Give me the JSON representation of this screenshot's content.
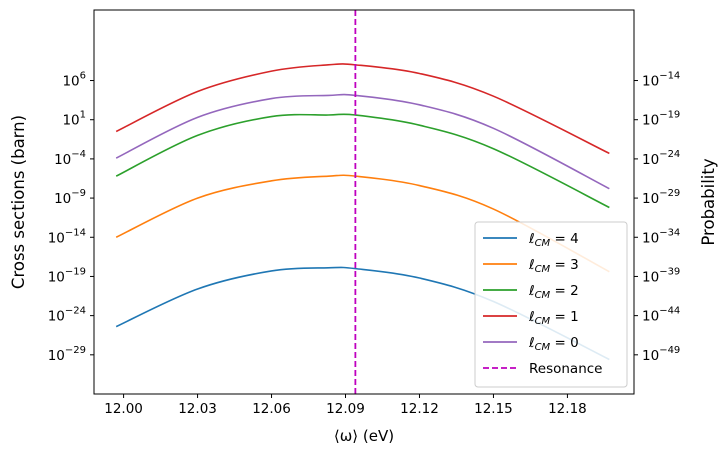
{
  "chart_data": {
    "type": "line",
    "title": "",
    "xlabel": "⟨ω⟩ (eV)",
    "ylabel_left": "Cross sections (barn)",
    "ylabel_right": "Probability",
    "xlim": [
      11.988,
      12.207
    ],
    "ylim_log10_left": [
      -34,
      15
    ],
    "ylim_log10_right": [
      -54,
      -5
    ],
    "x_ticks": [
      {
        "value": 12.0,
        "label": "12.00"
      },
      {
        "value": 12.03,
        "label": "12.03"
      },
      {
        "value": 12.06,
        "label": "12.06"
      },
      {
        "value": 12.09,
        "label": "12.09"
      },
      {
        "value": 12.12,
        "label": "12.12"
      },
      {
        "value": 12.15,
        "label": "12.15"
      },
      {
        "value": 12.18,
        "label": "12.18"
      }
    ],
    "left_ticks": [
      {
        "exp": 6,
        "base": "10",
        "sup": "6"
      },
      {
        "exp": 1,
        "base": "10",
        "sup": "1"
      },
      {
        "exp": -4,
        "base": "10",
        "sup": "−4"
      },
      {
        "exp": -9,
        "base": "10",
        "sup": "−9"
      },
      {
        "exp": -14,
        "base": "10",
        "sup": "−14"
      },
      {
        "exp": -19,
        "base": "10",
        "sup": "−19"
      },
      {
        "exp": -24,
        "base": "10",
        "sup": "−24"
      },
      {
        "exp": -29,
        "base": "10",
        "sup": "−29"
      }
    ],
    "right_ticks": [
      {
        "exp": -14,
        "base": "10",
        "sup": "−14"
      },
      {
        "exp": -19,
        "base": "10",
        "sup": "−19"
      },
      {
        "exp": -24,
        "base": "10",
        "sup": "−24"
      },
      {
        "exp": -29,
        "base": "10",
        "sup": "−29"
      },
      {
        "exp": -34,
        "base": "10",
        "sup": "−34"
      },
      {
        "exp": -39,
        "base": "10",
        "sup": "−39"
      },
      {
        "exp": -44,
        "base": "10",
        "sup": "−44"
      },
      {
        "exp": -49,
        "base": "10",
        "sup": "−49"
      }
    ],
    "resonance_x": 12.094,
    "series": [
      {
        "name": "ℓ_CM = 4",
        "legend_main": "ℓ",
        "legend_sub": "CM",
        "legend_rest": " = 4",
        "color": "#1f77b4",
        "x": [
          11.997,
          12.03,
          12.06,
          12.083,
          12.094,
          12.12,
          12.15,
          12.197
        ],
        "log10_y": [
          -25.4,
          -20.6,
          -18.3,
          -17.9,
          -18.0,
          -19.2,
          -22.2,
          -29.6
        ]
      },
      {
        "name": "ℓ_CM = 3",
        "legend_main": "ℓ",
        "legend_sub": "CM",
        "legend_rest": " = 3",
        "color": "#ff7f0e",
        "x": [
          11.997,
          12.03,
          12.06,
          12.083,
          12.094,
          12.12,
          12.15,
          12.197
        ],
        "log10_y": [
          -14.0,
          -9.0,
          -6.8,
          -6.2,
          -6.2,
          -7.4,
          -10.4,
          -18.4
        ]
      },
      {
        "name": "ℓ_CM = 2",
        "legend_main": "ℓ",
        "legend_sub": "CM",
        "legend_rest": " = 2",
        "color": "#2ca02c",
        "x": [
          11.997,
          12.03,
          12.06,
          12.083,
          12.094,
          12.12,
          12.15,
          12.197
        ],
        "log10_y": [
          -6.2,
          -1.0,
          1.4,
          1.6,
          1.6,
          0.3,
          -2.7,
          -10.2
        ]
      },
      {
        "name": "ℓ_CM = 1",
        "legend_main": "ℓ",
        "legend_sub": "CM",
        "legend_rest": " = 1",
        "color": "#d62728",
        "x": [
          11.997,
          12.03,
          12.06,
          12.083,
          12.094,
          12.12,
          12.15,
          12.197
        ],
        "log10_y": [
          -0.5,
          4.6,
          7.2,
          8.0,
          8.0,
          6.9,
          4.0,
          -3.3
        ]
      },
      {
        "name": "ℓ_CM = 0",
        "legend_main": "ℓ",
        "legend_sub": "CM",
        "legend_rest": " = 0",
        "color": "#9467bd",
        "x": [
          11.997,
          12.03,
          12.06,
          12.083,
          12.094,
          12.12,
          12.15,
          12.197
        ],
        "log10_y": [
          -3.9,
          1.3,
          3.7,
          4.1,
          4.1,
          2.9,
          -0.1,
          -7.8
        ]
      }
    ],
    "resonance": {
      "label": "Resonance",
      "color": "#bf00bf"
    },
    "legend_position": "lower-right"
  }
}
